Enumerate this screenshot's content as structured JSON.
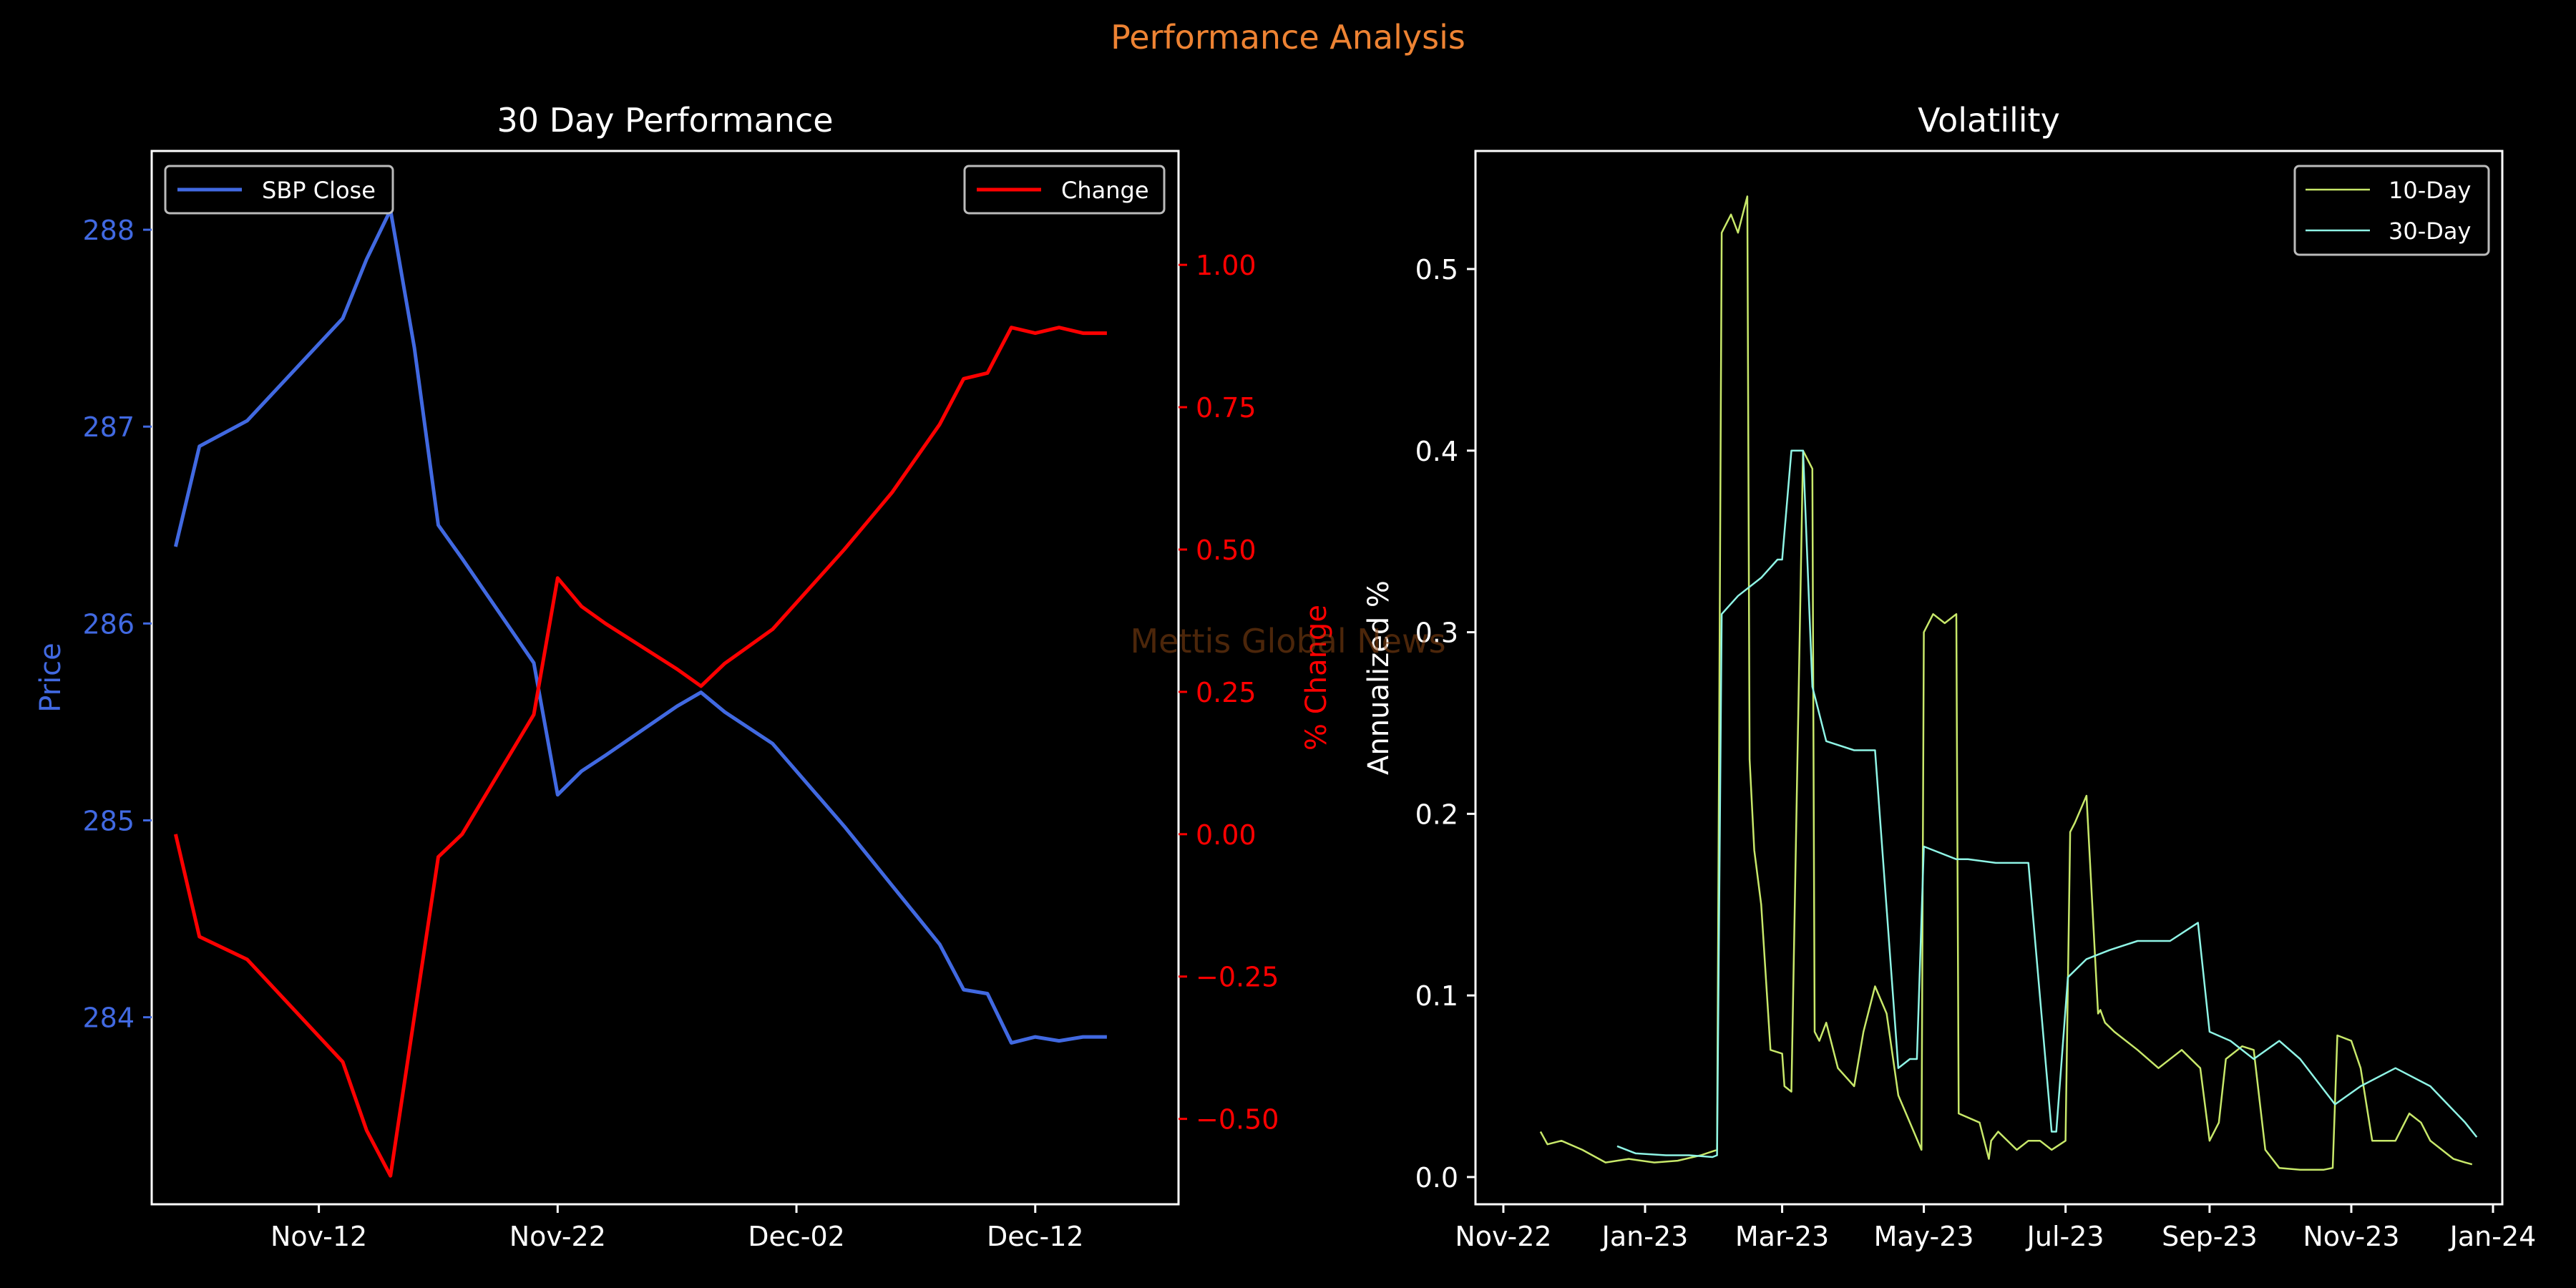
{
  "suptitle": "Performance Analysis",
  "watermark": "Mettis Global News",
  "colors": {
    "background": "#000000",
    "suptitle": "#ee8333",
    "price": "#4169e1",
    "change": "#ff0000",
    "vol10": "#c8e86a",
    "vol30": "#8ff5e6",
    "axes": "#ffffff",
    "watermark": "#8b4513"
  },
  "chart_data": [
    {
      "type": "line",
      "title": "30 Day Performance",
      "xlabel": "",
      "ylabel": "Price",
      "y2label": "% Change",
      "xlim": [
        "2022-11-05",
        "2022-12-18"
      ],
      "ylim": [
        283.05,
        288.4
      ],
      "y2lim": [
        -0.65,
        1.2
      ],
      "x_ticks": [
        {
          "date": "2022-11-12",
          "label": "Nov-12"
        },
        {
          "date": "2022-11-22",
          "label": "Nov-22"
        },
        {
          "date": "2022-12-02",
          "label": "Dec-02"
        },
        {
          "date": "2022-12-12",
          "label": "Dec-12"
        }
      ],
      "y_ticks": [
        {
          "value": 284,
          "label": "284"
        },
        {
          "value": 285,
          "label": "285"
        },
        {
          "value": 286,
          "label": "286"
        },
        {
          "value": 287,
          "label": "287"
        },
        {
          "value": 288,
          "label": "288"
        }
      ],
      "y2_ticks": [
        {
          "value": -0.5,
          "label": "−0.50"
        },
        {
          "value": -0.25,
          "label": "−0.25"
        },
        {
          "value": 0.0,
          "label": "0.00"
        },
        {
          "value": 0.25,
          "label": "0.25"
        },
        {
          "value": 0.5,
          "label": "0.50"
        },
        {
          "value": 0.75,
          "label": "0.75"
        },
        {
          "value": 1.0,
          "label": "1.00"
        }
      ],
      "legend_left": "top-left",
      "legend_right": "top-right",
      "series": [
        {
          "name": "SBP Close",
          "axis": "left",
          "x": [
            "2022-11-06",
            "2022-11-07",
            "2022-11-09",
            "2022-11-13",
            "2022-11-14",
            "2022-11-15",
            "2022-11-16",
            "2022-11-17",
            "2022-11-18",
            "2022-11-21",
            "2022-11-22",
            "2022-11-23",
            "2022-11-24",
            "2022-11-27",
            "2022-11-28",
            "2022-11-29",
            "2022-12-01",
            "2022-12-04",
            "2022-12-05",
            "2022-12-06",
            "2022-12-07",
            "2022-12-08",
            "2022-12-09",
            "2022-12-10",
            "2022-12-11",
            "2022-12-12",
            "2022-12-13",
            "2022-12-14",
            "2022-12-15"
          ],
          "values": [
            286.39,
            286.9,
            287.03,
            287.55,
            287.85,
            288.1,
            287.4,
            286.5,
            286.33,
            285.8,
            285.13,
            285.25,
            285.33,
            285.58,
            285.65,
            285.55,
            285.39,
            284.97,
            284.82,
            284.67,
            284.52,
            284.37,
            284.14,
            284.12,
            283.87,
            283.9,
            283.88,
            283.9,
            283.9
          ]
        },
        {
          "name": "Change",
          "axis": "right",
          "x": [
            "2022-11-06",
            "2022-11-07",
            "2022-11-09",
            "2022-11-13",
            "2022-11-14",
            "2022-11-15",
            "2022-11-16",
            "2022-11-17",
            "2022-11-18",
            "2022-11-21",
            "2022-11-22",
            "2022-11-23",
            "2022-11-24",
            "2022-11-27",
            "2022-11-28",
            "2022-11-29",
            "2022-12-01",
            "2022-12-04",
            "2022-12-05",
            "2022-12-06",
            "2022-12-07",
            "2022-12-08",
            "2022-12-09",
            "2022-12-10",
            "2022-12-11",
            "2022-12-12",
            "2022-12-13",
            "2022-12-14",
            "2022-12-15"
          ],
          "values": [
            0.0,
            -0.18,
            -0.22,
            -0.4,
            -0.52,
            -0.6,
            -0.32,
            -0.04,
            0.0,
            0.21,
            0.45,
            0.4,
            0.37,
            0.29,
            0.26,
            0.3,
            0.36,
            0.5,
            0.55,
            0.6,
            0.66,
            0.72,
            0.8,
            0.81,
            0.89,
            0.88,
            0.89,
            0.88,
            0.88
          ]
        }
      ]
    },
    {
      "type": "line",
      "title": "Volatility",
      "xlabel": "",
      "ylabel": "Annualized %",
      "xlim": [
        "2022-10-20",
        "2024-01-05"
      ],
      "ylim": [
        -0.015,
        0.565
      ],
      "x_ticks": [
        {
          "date": "2022-11-01",
          "label": "Nov-22"
        },
        {
          "date": "2023-01-01",
          "label": "Jan-23"
        },
        {
          "date": "2023-03-01",
          "label": "Mar-23"
        },
        {
          "date": "2023-05-01",
          "label": "May-23"
        },
        {
          "date": "2023-07-01",
          "label": "Jul-23"
        },
        {
          "date": "2023-09-01",
          "label": "Sep-23"
        },
        {
          "date": "2023-11-01",
          "label": "Nov-23"
        },
        {
          "date": "2024-01-01",
          "label": "Jan-24"
        }
      ],
      "y_ticks": [
        {
          "value": 0.0,
          "label": "0.0"
        },
        {
          "value": 0.1,
          "label": "0.1"
        },
        {
          "value": 0.2,
          "label": "0.2"
        },
        {
          "value": 0.3,
          "label": "0.3"
        },
        {
          "value": 0.4,
          "label": "0.4"
        },
        {
          "value": 0.5,
          "label": "0.5"
        }
      ],
      "legend": "top-right",
      "series": [
        {
          "name": "10-Day",
          "x": [
            "2022-11-17",
            "2022-11-20",
            "2022-11-26",
            "2022-12-05",
            "2022-12-15",
            "2022-12-25",
            "2023-01-05",
            "2023-01-15",
            "2023-01-25",
            "2023-02-01",
            "2023-02-03",
            "2023-02-07",
            "2023-02-10",
            "2023-02-14",
            "2023-02-15",
            "2023-02-17",
            "2023-02-20",
            "2023-02-24",
            "2023-03-01",
            "2023-03-02",
            "2023-03-05",
            "2023-03-10",
            "2023-03-14",
            "2023-03-15",
            "2023-03-17",
            "2023-03-20",
            "2023-03-25",
            "2023-04-01",
            "2023-04-05",
            "2023-04-10",
            "2023-04-15",
            "2023-04-20",
            "2023-04-25",
            "2023-04-30",
            "2023-05-01",
            "2023-05-05",
            "2023-05-10",
            "2023-05-15",
            "2023-05-16",
            "2023-05-25",
            "2023-05-29",
            "2023-05-30",
            "2023-06-02",
            "2023-06-10",
            "2023-06-15",
            "2023-06-20",
            "2023-06-25",
            "2023-07-01",
            "2023-07-03",
            "2023-07-05",
            "2023-07-10",
            "2023-07-15",
            "2023-07-16",
            "2023-07-18",
            "2023-07-22",
            "2023-08-01",
            "2023-08-10",
            "2023-08-20",
            "2023-08-28",
            "2023-09-01",
            "2023-09-05",
            "2023-09-08",
            "2023-09-15",
            "2023-09-20",
            "2023-09-25",
            "2023-10-01",
            "2023-10-10",
            "2023-10-20",
            "2023-10-24",
            "2023-10-26",
            "2023-11-01",
            "2023-11-05",
            "2023-11-10",
            "2023-11-20",
            "2023-11-26",
            "2023-12-01",
            "2023-12-05",
            "2023-12-10",
            "2023-12-15",
            "2023-12-20",
            "2023-12-23"
          ],
          "values": [
            0.025,
            0.018,
            0.02,
            0.015,
            0.008,
            0.01,
            0.008,
            0.009,
            0.012,
            0.015,
            0.52,
            0.53,
            0.52,
            0.54,
            0.23,
            0.18,
            0.15,
            0.07,
            0.068,
            0.05,
            0.047,
            0.4,
            0.39,
            0.08,
            0.075,
            0.085,
            0.06,
            0.05,
            0.08,
            0.105,
            0.09,
            0.045,
            0.03,
            0.015,
            0.3,
            0.31,
            0.305,
            0.31,
            0.035,
            0.03,
            0.01,
            0.02,
            0.025,
            0.015,
            0.02,
            0.02,
            0.015,
            0.02,
            0.19,
            0.195,
            0.21,
            0.09,
            0.092,
            0.085,
            0.08,
            0.07,
            0.06,
            0.07,
            0.06,
            0.02,
            0.03,
            0.065,
            0.072,
            0.07,
            0.015,
            0.005,
            0.004,
            0.004,
            0.005,
            0.078,
            0.075,
            0.06,
            0.02,
            0.02,
            0.035,
            0.03,
            0.02,
            0.015,
            0.01,
            0.008,
            0.007
          ]
        },
        {
          "name": "30-Day",
          "x": [
            "2022-12-20",
            "2022-12-28",
            "2023-01-10",
            "2023-01-20",
            "2023-01-30",
            "2023-02-01",
            "2023-02-03",
            "2023-02-10",
            "2023-02-20",
            "2023-02-27",
            "2023-03-01",
            "2023-03-05",
            "2023-03-10",
            "2023-03-14",
            "2023-03-20",
            "2023-04-01",
            "2023-04-10",
            "2023-04-20",
            "2023-04-25",
            "2023-04-28",
            "2023-05-01",
            "2023-05-15",
            "2023-05-20",
            "2023-06-01",
            "2023-06-15",
            "2023-06-25",
            "2023-06-27",
            "2023-07-02",
            "2023-07-10",
            "2023-07-20",
            "2023-08-01",
            "2023-08-15",
            "2023-08-27",
            "2023-09-01",
            "2023-09-10",
            "2023-09-20",
            "2023-10-01",
            "2023-10-10",
            "2023-10-25",
            "2023-11-05",
            "2023-11-20",
            "2023-12-05",
            "2023-12-20",
            "2023-12-25"
          ],
          "values": [
            0.017,
            0.013,
            0.012,
            0.012,
            0.011,
            0.012,
            0.31,
            0.32,
            0.33,
            0.34,
            0.34,
            0.4,
            0.4,
            0.27,
            0.24,
            0.235,
            0.235,
            0.06,
            0.065,
            0.065,
            0.182,
            0.175,
            0.175,
            0.173,
            0.173,
            0.025,
            0.025,
            0.11,
            0.12,
            0.125,
            0.13,
            0.13,
            0.14,
            0.08,
            0.075,
            0.065,
            0.075,
            0.065,
            0.04,
            0.05,
            0.06,
            0.05,
            0.03,
            0.022
          ]
        }
      ]
    }
  ]
}
